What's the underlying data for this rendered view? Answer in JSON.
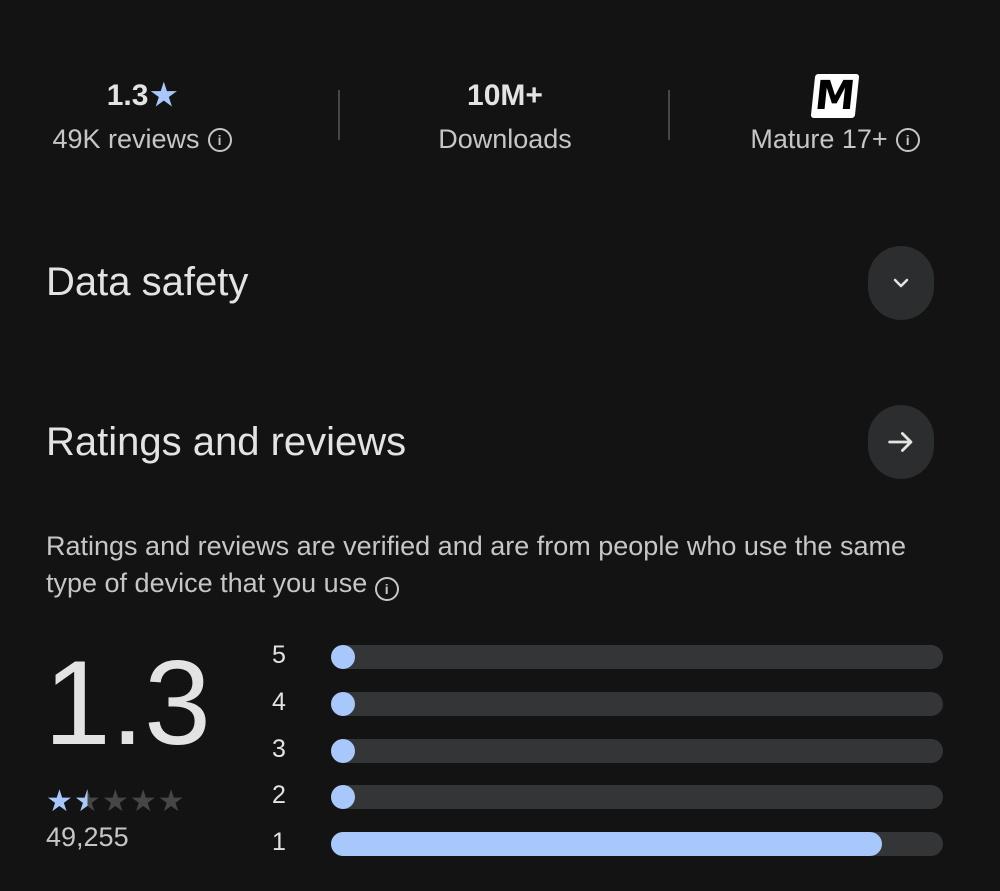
{
  "stats": {
    "rating": {
      "value": "1.3",
      "icon": "star-icon",
      "label": "49K reviews"
    },
    "downloads": {
      "value": "10M+",
      "label": "Downloads"
    },
    "content_rating": {
      "logo": "M",
      "label": "Mature 17+"
    }
  },
  "data_safety": {
    "title": "Data safety",
    "icon": "chevron-down-icon"
  },
  "ratings": {
    "title": "Ratings and reviews",
    "icon": "arrow-right-icon",
    "description": "Ratings and reviews are verified and are from people who use the same type of device that you use",
    "average": "1.3",
    "stars_value": 1.3,
    "count": "49,255",
    "accent_color": "#a8c7fa",
    "distribution": [
      {
        "label": "5",
        "fraction": 0.02
      },
      {
        "label": "4",
        "fraction": 0.02
      },
      {
        "label": "3",
        "fraction": 0.02
      },
      {
        "label": "2",
        "fraction": 0.02
      },
      {
        "label": "1",
        "fraction": 0.9
      }
    ]
  }
}
